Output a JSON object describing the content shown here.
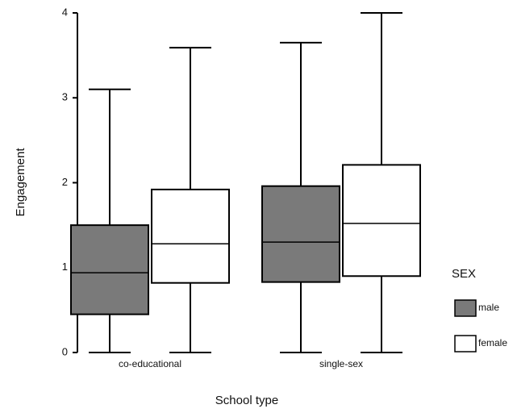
{
  "chart_data": {
    "type": "box",
    "x_label": "School type",
    "y_label": "Engagement",
    "legend_title": "SEX",
    "categories": [
      "co-educational",
      "single-sex"
    ],
    "series": [
      {
        "name": "male",
        "color": "#7a7a7a",
        "values": [
          {
            "min": 0,
            "q1": 0.45,
            "median": 0.94,
            "q3": 1.5,
            "max": 3.1
          },
          {
            "min": 0,
            "q1": 0.83,
            "median": 1.3,
            "q3": 1.96,
            "max": 3.65
          }
        ]
      },
      {
        "name": "female",
        "color": "#ffffff",
        "values": [
          {
            "min": 0,
            "q1": 0.82,
            "median": 1.28,
            "q3": 1.92,
            "max": 3.59
          },
          {
            "min": 0,
            "q1": 0.9,
            "median": 1.52,
            "q3": 2.21,
            "max": 4.0
          }
        ]
      }
    ],
    "ylim": [
      0,
      4
    ],
    "yticks": [
      0,
      1,
      2,
      3,
      4
    ]
  }
}
